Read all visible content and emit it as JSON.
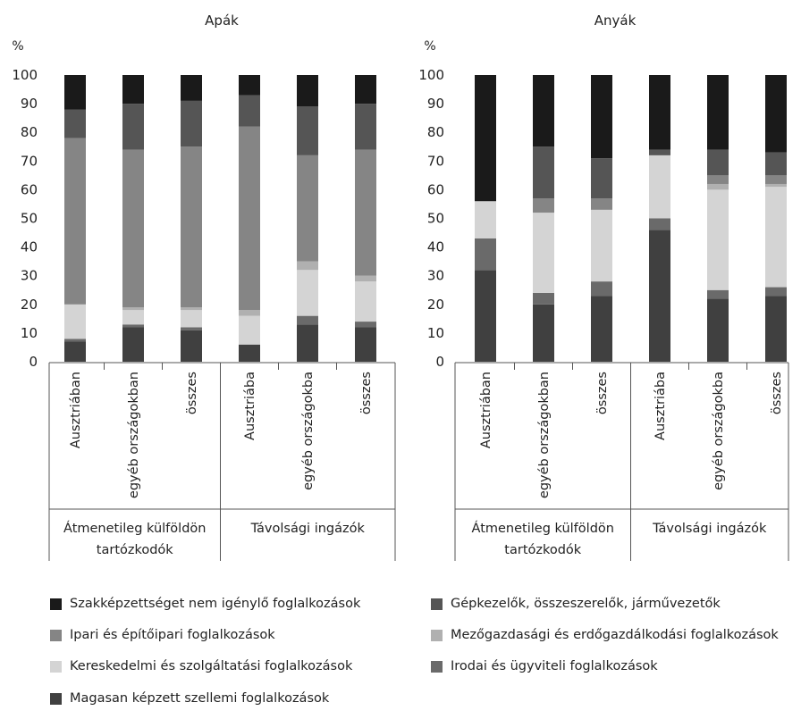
{
  "chart_data": [
    {
      "type": "bar",
      "stacked": true,
      "title": "Apák",
      "ylabel": "%",
      "ylim": [
        0,
        100
      ],
      "yticks": [
        0,
        10,
        20,
        30,
        40,
        50,
        60,
        70,
        80,
        90,
        100
      ],
      "categories": [
        "Ausztriában",
        "egyéb országokban",
        "összes",
        "Ausztriába",
        "egyéb országokba",
        "összes"
      ],
      "groups": [
        {
          "label": "Átmenetileg külföldön tartózkodók",
          "lines": [
            "Átmenetileg külföldön",
            "tartózkodók"
          ],
          "count": 3
        },
        {
          "label": "Távolsági ingázók",
          "lines": [
            "Távolsági ingázók"
          ],
          "count": 3
        }
      ],
      "series": [
        {
          "name": "Magasan képzett szellemi foglalkozások",
          "color": "#404040",
          "values": [
            7,
            12,
            11,
            6,
            13,
            12
          ]
        },
        {
          "name": "Irodai és ügyviteli foglalkozások",
          "color": "#6a6a6a",
          "values": [
            1,
            1,
            1,
            0,
            3,
            2
          ]
        },
        {
          "name": "Kereskedelmi és szolgáltatási foglalkozások",
          "color": "#d4d4d4",
          "values": [
            12,
            5,
            6,
            10,
            16,
            14
          ]
        },
        {
          "name": "Mezőgazdasági és erdőgazdálkodási foglalkozások",
          "color": "#b0b0b0",
          "values": [
            0,
            1,
            1,
            2,
            3,
            2
          ]
        },
        {
          "name": "Ipari és építőipari foglalkozások",
          "color": "#858585",
          "values": [
            58,
            55,
            56,
            64,
            37,
            44
          ]
        },
        {
          "name": "Gépkezelők, összeszerelők, járművezetők",
          "color": "#555555",
          "values": [
            10,
            16,
            16,
            11,
            17,
            16
          ]
        },
        {
          "name": "Szakképzettséget nem igénylő foglalkozások",
          "color": "#1a1a1a",
          "values": [
            12,
            10,
            9,
            7,
            11,
            10
          ]
        }
      ]
    },
    {
      "type": "bar",
      "stacked": true,
      "title": "Anyák",
      "ylabel": "%",
      "ylim": [
        0,
        100
      ],
      "yticks": [
        0,
        10,
        20,
        30,
        40,
        50,
        60,
        70,
        80,
        90,
        100
      ],
      "categories": [
        "Ausztriában",
        "egyéb országokban",
        "összes",
        "Ausztriába",
        "egyéb országokba",
        "összes"
      ],
      "groups": [
        {
          "label": "Átmenetileg külföldön tartózkodók",
          "lines": [
            "Átmenetileg külföldön",
            "tartózkodók"
          ],
          "count": 3
        },
        {
          "label": "Távolsági ingázók",
          "lines": [
            "Távolsági ingázók"
          ],
          "count": 3
        }
      ],
      "series": [
        {
          "name": "Magasan képzett szellemi foglalkozások",
          "color": "#404040",
          "values": [
            32,
            20,
            23,
            46,
            22,
            23
          ]
        },
        {
          "name": "Irodai és ügyviteli foglalkozások",
          "color": "#6a6a6a",
          "values": [
            11,
            4,
            5,
            4,
            3,
            3
          ]
        },
        {
          "name": "Kereskedelmi és szolgáltatási foglalkozások",
          "color": "#d4d4d4",
          "values": [
            13,
            28,
            25,
            22,
            35,
            35
          ]
        },
        {
          "name": "Mezőgazdasági és erdőgazdálkodási foglalkozások",
          "color": "#b0b0b0",
          "values": [
            0,
            0,
            0,
            0,
            2,
            1
          ]
        },
        {
          "name": "Ipari és építőipari foglalkozások",
          "color": "#858585",
          "values": [
            0,
            5,
            4,
            0,
            3,
            3
          ]
        },
        {
          "name": "Gépkezelők, összeszerelők, járművezetők",
          "color": "#555555",
          "values": [
            0,
            18,
            14,
            2,
            9,
            8
          ]
        },
        {
          "name": "Szakképzettséget nem igénylő foglalkozások",
          "color": "#1a1a1a",
          "values": [
            44,
            25,
            29,
            26,
            26,
            27
          ]
        }
      ]
    }
  ],
  "legend": [
    {
      "label": "Szakképzettséget nem igénylő foglalkozások",
      "color": "#1a1a1a"
    },
    {
      "label": "Gépkezelők, összeszerelők, járművezetők",
      "color": "#555555"
    },
    {
      "label": "Ipari és építőipari foglalkozások",
      "color": "#858585"
    },
    {
      "label": "Mezőgazdasági és erdőgazdálkodási foglalkozások",
      "color": "#b0b0b0"
    },
    {
      "label": "Kereskedelmi és szolgáltatási foglalkozások",
      "color": "#d4d4d4"
    },
    {
      "label": "Irodai és ügyviteli foglalkozások",
      "color": "#6a6a6a"
    },
    {
      "label": "Magasan képzett szellemi foglalkozások",
      "color": "#404040"
    }
  ]
}
